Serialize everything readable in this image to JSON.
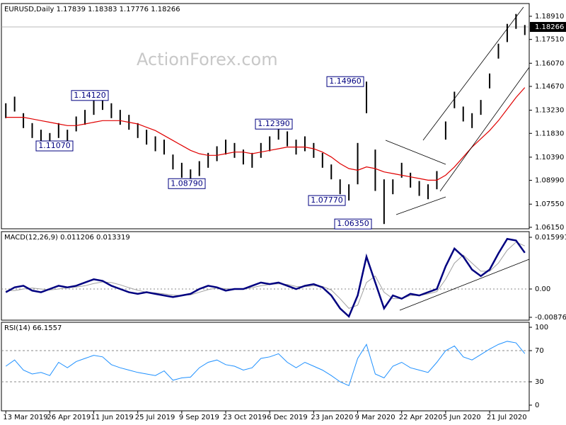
{
  "chart_data": [
    {
      "type": "hilo",
      "title": "EURUSD,Daily  1.17839 1.18383 1.17776 1.18266",
      "watermark": "ActionForex.com",
      "color": "#000000",
      "high": [
        1.1365,
        1.1405,
        1.1305,
        1.1245,
        1.1205,
        1.1185,
        1.1245,
        1.1205,
        1.1285,
        1.1325,
        1.1385,
        1.1412,
        1.1365,
        1.1325,
        1.1295,
        1.1245,
        1.1205,
        1.1165,
        1.1145,
        1.1055,
        1.1005,
        1.0965,
        1.1015,
        1.1065,
        1.1105,
        1.1145,
        1.1125,
        1.1085,
        1.1065,
        1.1125,
        1.1165,
        1.1239,
        1.1195,
        1.1145,
        1.1165,
        1.1125,
        1.1065,
        1.0995,
        1.0905,
        1.0875,
        1.1125,
        1.1496,
        1.1085,
        1.0905,
        1.0905,
        1.1005,
        1.0945,
        1.0895,
        1.0875,
        1.0955,
        1.1255,
        1.1435,
        1.1345,
        1.1305,
        1.1385,
        1.1545,
        1.1725,
        1.1845,
        1.1905,
        1.18383
      ],
      "low": [
        1.1275,
        1.1315,
        1.1215,
        1.1155,
        1.1115,
        1.1107,
        1.1155,
        1.1115,
        1.1195,
        1.1235,
        1.1295,
        1.1325,
        1.1275,
        1.1235,
        1.1205,
        1.1155,
        1.1115,
        1.1075,
        1.1055,
        1.0965,
        1.0915,
        1.0879,
        1.0925,
        1.0975,
        1.1015,
        1.1055,
        1.1035,
        1.0995,
        1.0975,
        1.1035,
        1.1075,
        1.1145,
        1.1105,
        1.1055,
        1.1075,
        1.1035,
        1.0975,
        1.0905,
        1.0815,
        1.0777,
        1.0875,
        1.1305,
        1.0835,
        1.0635,
        1.0815,
        1.0915,
        1.0855,
        1.0805,
        1.0785,
        1.0845,
        1.1145,
        1.1335,
        1.1255,
        1.1215,
        1.1295,
        1.1455,
        1.1635,
        1.1735,
        1.1815,
        1.17776
      ],
      "ma": {
        "color": "#e00000",
        "values": [
          1.128,
          1.128,
          1.128,
          1.127,
          1.126,
          1.125,
          1.124,
          1.123,
          1.123,
          1.124,
          1.125,
          1.126,
          1.126,
          1.126,
          1.125,
          1.124,
          1.122,
          1.12,
          1.117,
          1.114,
          1.111,
          1.108,
          1.106,
          1.105,
          1.105,
          1.106,
          1.107,
          1.107,
          1.106,
          1.107,
          1.108,
          1.109,
          1.11,
          1.11,
          1.11,
          1.109,
          1.107,
          1.104,
          1.1,
          1.097,
          1.096,
          1.098,
          1.097,
          1.095,
          1.094,
          1.093,
          1.092,
          1.091,
          1.09,
          1.09,
          1.093,
          1.098,
          1.104,
          1.11,
          1.115,
          1.12,
          1.126,
          1.133,
          1.14,
          1.146
        ]
      },
      "ylim": [
        1.0606,
        1.1968
      ],
      "yticks": [
        {
          "value": 1.1891,
          "label": "1.18910"
        },
        {
          "value": 1.1751,
          "label": "1.17510"
        },
        {
          "value": 1.1607,
          "label": "1.16070"
        },
        {
          "value": 1.1467,
          "label": "1.14670"
        },
        {
          "value": 1.1323,
          "label": "1.13230"
        },
        {
          "value": 1.1183,
          "label": "1.11830"
        },
        {
          "value": 1.1039,
          "label": "1.10390"
        },
        {
          "value": 1.0899,
          "label": "1.08990"
        },
        {
          "value": 1.0755,
          "label": "1.07550"
        },
        {
          "value": 1.0615,
          "label": "1.06150"
        }
      ],
      "last": {
        "value": 1.18266,
        "label": "1.18266"
      },
      "annotations": [
        {
          "value": 1.1412,
          "label": "1.14120"
        },
        {
          "value": 1.1107,
          "label": "1.11070"
        },
        {
          "value": 1.0879,
          "label": "1.08790"
        },
        {
          "value": 1.1239,
          "label": "1.12390"
        },
        {
          "value": 1.0777,
          "label": "1.07770"
        },
        {
          "value": 1.1496,
          "label": "1.14960"
        },
        {
          "value": 1.0635,
          "label": "1.06350"
        }
      ]
    },
    {
      "type": "line",
      "title": "MACD(12,26,9) 0.011206 0.013319",
      "series": [
        {
          "color": "#000080",
          "values": [
            -0.001,
            0.0005,
            0.001,
            -0.0005,
            -0.001,
            0.0,
            0.001,
            0.0005,
            0.001,
            0.002,
            0.003,
            0.0025,
            0.001,
            0.0,
            -0.001,
            -0.0015,
            -0.001,
            -0.0015,
            -0.002,
            -0.0025,
            -0.002,
            -0.0015,
            0.0,
            0.001,
            0.0005,
            -0.0005,
            0.0,
            0.0,
            0.001,
            0.002,
            0.0015,
            0.002,
            0.001,
            0.0,
            0.001,
            0.0015,
            0.0005,
            -0.002,
            -0.006,
            -0.0085,
            -0.002,
            0.01,
            0.002,
            -0.006,
            -0.002,
            -0.003,
            -0.0015,
            -0.002,
            -0.001,
            0.0,
            0.007,
            0.0125,
            0.01,
            0.006,
            0.004,
            0.006,
            0.011,
            0.0155,
            0.015,
            0.011206
          ]
        },
        {
          "color": "#a0a0a0",
          "values": [
            -0.0005,
            -0.0005,
            0.0,
            0.0003,
            0.0,
            -0.0003,
            0.0,
            0.0004,
            0.0006,
            0.001,
            0.0017,
            0.0022,
            0.002,
            0.0013,
            0.0004,
            -0.0004,
            -0.001,
            -0.0012,
            -0.0015,
            -0.0019,
            -0.002,
            -0.0018,
            -0.001,
            -0.0002,
            0.0003,
            0.0001,
            0.0,
            0.0,
            0.0004,
            0.001,
            0.0014,
            0.0016,
            0.0014,
            0.0008,
            0.0007,
            0.001,
            0.0008,
            -0.0003,
            -0.003,
            -0.006,
            -0.005,
            0.002,
            0.004,
            -0.001,
            -0.003,
            -0.003,
            -0.002,
            -0.002,
            -0.0015,
            -0.0008,
            0.003,
            0.008,
            0.0105,
            0.008,
            0.0055,
            0.0055,
            0.008,
            0.012,
            0.0145,
            0.013319
          ]
        }
      ],
      "ylim": [
        -0.00964,
        0.01774
      ],
      "yticks": [
        {
          "value": 0.015991,
          "label": "0.015991"
        },
        {
          "value": 0,
          "label": "0.00"
        },
        {
          "value": -0.00876,
          "label": "-0.00876"
        }
      ]
    },
    {
      "type": "line",
      "title": "RSI(14) 66.1557",
      "series": [
        {
          "color": "#1e90ff",
          "values": [
            50,
            58,
            45,
            40,
            42,
            38,
            55,
            48,
            56,
            60,
            64,
            62,
            52,
            48,
            45,
            42,
            40,
            38,
            44,
            32,
            35,
            36,
            48,
            55,
            58,
            52,
            50,
            45,
            48,
            60,
            62,
            66,
            55,
            48,
            55,
            50,
            45,
            38,
            30,
            25,
            60,
            78,
            40,
            35,
            50,
            55,
            48,
            45,
            42,
            55,
            70,
            76,
            62,
            58,
            65,
            72,
            78,
            82,
            80,
            66.1557
          ]
        }
      ],
      "ylim": [
        -7.3,
        106.4
      ],
      "yticks": [
        100,
        70,
        30,
        0
      ],
      "levels": [
        70,
        30
      ],
      "categories": [
        "13 Mar 2019",
        null,
        null,
        null,
        null,
        "26 Apr 2019",
        null,
        null,
        null,
        null,
        "11 Jun 2019",
        null,
        null,
        null,
        null,
        "25 Jul 2019",
        null,
        null,
        null,
        null,
        "9 Sep 2019",
        null,
        null,
        null,
        null,
        "23 Oct 2019",
        null,
        null,
        null,
        null,
        "6 Dec 2019",
        null,
        null,
        null,
        null,
        "23 Jan 2020",
        null,
        null,
        null,
        null,
        "9 Mar 2020",
        null,
        null,
        null,
        null,
        "22 Apr 2020",
        null,
        null,
        null,
        null,
        "5 Jun 2020",
        null,
        null,
        null,
        null,
        "21 Jul 2020",
        null,
        null,
        null,
        null
      ]
    }
  ]
}
